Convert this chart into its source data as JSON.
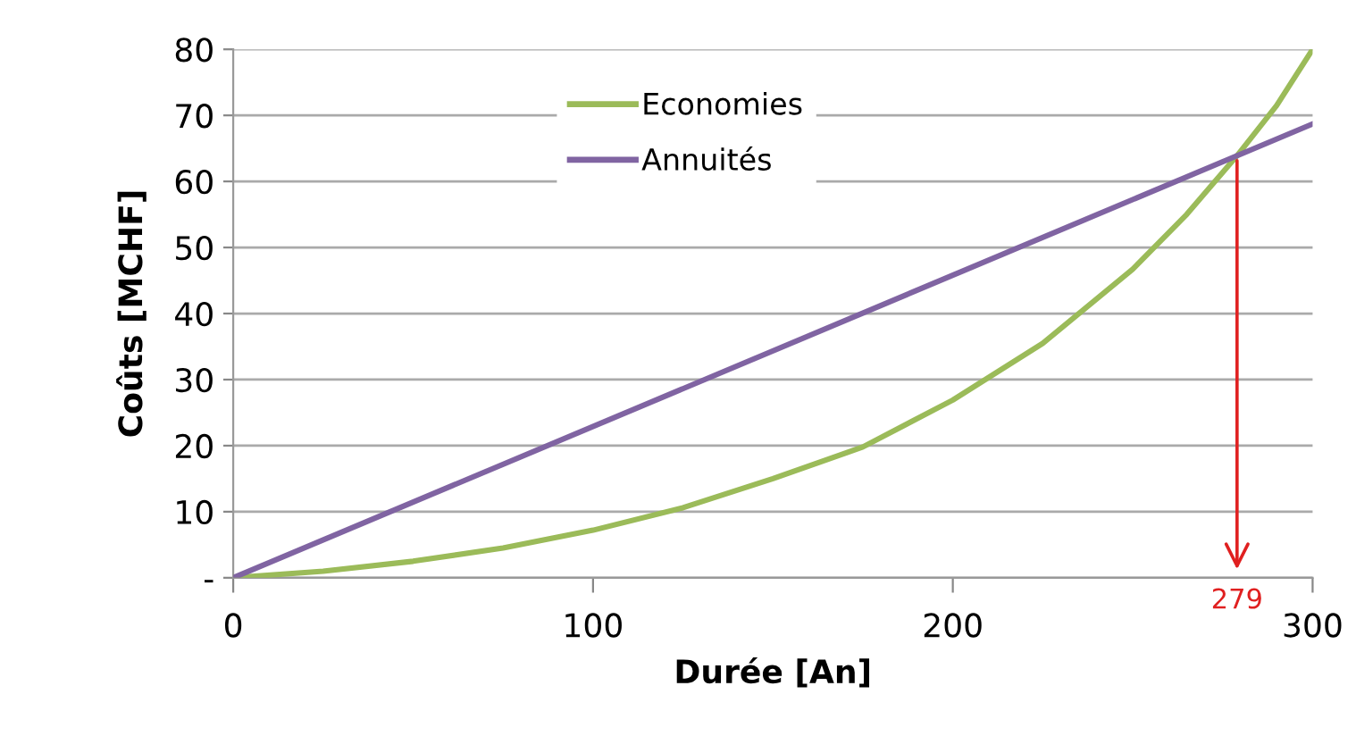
{
  "chart_data": {
    "type": "line",
    "xlabel": "Durée [An]",
    "ylabel": "Coûts [MCHF]",
    "xlim": [
      0,
      300
    ],
    "xticks": [
      0,
      100,
      200,
      300
    ],
    "ylim": [
      0,
      80
    ],
    "yticks": [
      {
        "value": 0,
        "label": "-"
      },
      10,
      20,
      30,
      40,
      50,
      60,
      70,
      80
    ],
    "grid": "y",
    "legend": "top center",
    "line_style": "solid",
    "marker": "none",
    "series": [
      {
        "name": "Economies",
        "color": "#9bbb59",
        "x": [
          0,
          25,
          50,
          75,
          100,
          125,
          150,
          175,
          200,
          225,
          250,
          265,
          279,
          290,
          300
        ],
        "values": [
          0,
          1,
          2.5,
          4.5,
          7.2,
          10.6,
          15,
          19.8,
          26.9,
          35.5,
          46.7,
          55,
          63.9,
          71.5,
          80
        ]
      },
      {
        "name": "Annuités",
        "color": "#8064a2",
        "x": [
          0,
          300
        ],
        "values": [
          0,
          68.7
        ]
      }
    ],
    "annotations": [
      {
        "text": "279",
        "x": 279,
        "y": 63.9
      }
    ]
  }
}
